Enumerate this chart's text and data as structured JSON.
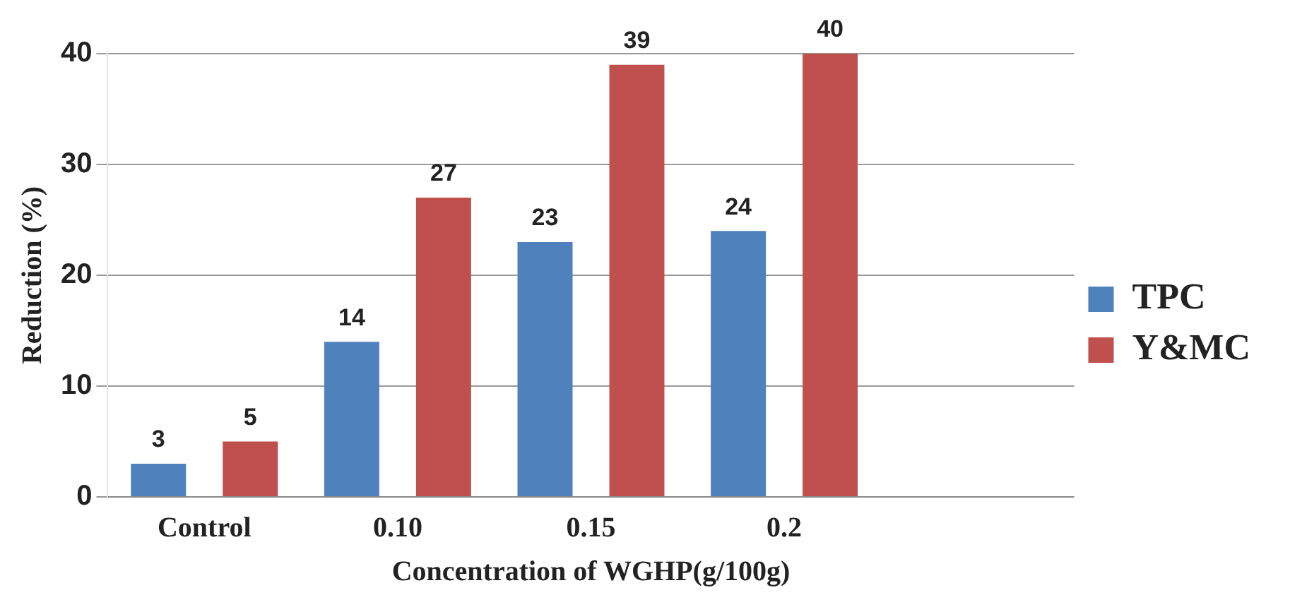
{
  "chart_data": {
    "type": "bar",
    "xlabel": "Concentration of WGHP(g/100g)",
    "ylabel": "Reduction (%)",
    "categories": [
      "Control",
      "0.10",
      "0.15",
      "0.2",
      null
    ],
    "series": [
      {
        "name": "TPC",
        "color": "#4f81bd",
        "values": [
          3,
          14,
          23,
          24,
          null
        ]
      },
      {
        "name": "Y&MC",
        "color": "#c0504d",
        "values": [
          5,
          27,
          39,
          40,
          null
        ]
      }
    ],
    "ylim": [
      0,
      40
    ],
    "yticks": [
      0,
      10,
      20,
      30,
      40
    ],
    "grid": "y",
    "legend": "right",
    "data_labels": true
  }
}
